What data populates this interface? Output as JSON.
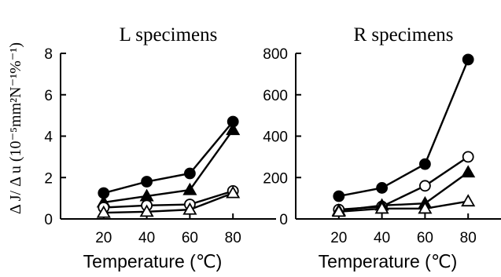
{
  "chart_data": [
    {
      "type": "line",
      "title": "L specimens",
      "xlabel": "Temperature (℃)",
      "ylabel": "Δ J/ Δ u (10⁻⁵mm²N⁻¹%⁻¹)",
      "x": [
        20,
        40,
        60,
        80
      ],
      "xlim": [
        0,
        100
      ],
      "ylim": [
        0,
        8
      ],
      "yticks": [
        0,
        2,
        4,
        6,
        8
      ],
      "grid": false,
      "series": [
        {
          "marker": "filled-circle",
          "values": [
            1.25,
            1.8,
            2.2,
            4.7
          ]
        },
        {
          "marker": "filled-triangle",
          "values": [
            0.8,
            1.1,
            1.4,
            4.3
          ]
        },
        {
          "marker": "open-circle",
          "values": [
            0.55,
            0.65,
            0.7,
            1.35
          ]
        },
        {
          "marker": "open-triangle",
          "values": [
            0.3,
            0.35,
            0.45,
            1.25
          ]
        }
      ]
    },
    {
      "type": "line",
      "title": "R specimens",
      "xlabel": "Temperature (℃)",
      "ylabel": "",
      "x": [
        20,
        40,
        60,
        80
      ],
      "xlim": [
        0,
        100
      ],
      "ylim": [
        0,
        800
      ],
      "yticks": [
        0,
        200,
        400,
        600,
        800
      ],
      "grid": false,
      "series": [
        {
          "marker": "filled-circle",
          "values": [
            110,
            150,
            265,
            770
          ]
        },
        {
          "marker": "open-circle",
          "values": [
            45,
            60,
            160,
            300
          ]
        },
        {
          "marker": "filled-triangle",
          "values": [
            40,
            65,
            75,
            225
          ]
        },
        {
          "marker": "open-triangle",
          "values": [
            35,
            50,
            50,
            85
          ]
        }
      ]
    }
  ]
}
